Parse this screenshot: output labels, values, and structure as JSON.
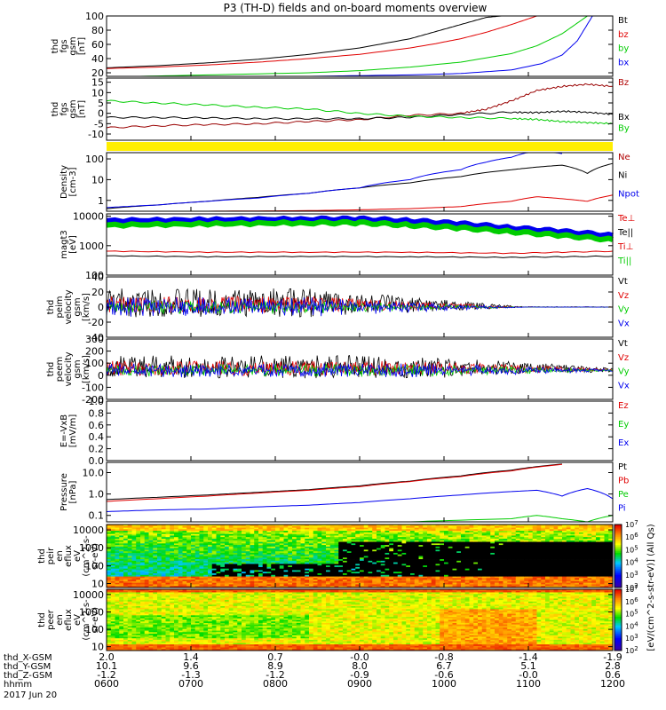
{
  "title": "P3 (TH-D) fields and on-board moments overview",
  "colors": {
    "black": "#000000",
    "red": "#e00000",
    "green": "#00dd00",
    "blue": "#0000ee",
    "yellow": "#ffee00"
  },
  "chart_data": {
    "type": "line",
    "x_axis": {
      "ticks": [
        "0600",
        "0700",
        "0800",
        "0900",
        "1000",
        "1100",
        "1200"
      ],
      "rows": [
        {
          "label": "thd_X-GSM",
          "values": [
            "2.0",
            "1.4",
            "0.7",
            "-0.0",
            "-0.8",
            "-1.4",
            "-1.9"
          ]
        },
        {
          "label": "thd_Y-GSM",
          "values": [
            "10.1",
            "9.6",
            "8.9",
            "8.0",
            "6.7",
            "5.1",
            "2.8"
          ]
        },
        {
          "label": "thd_Z-GSM",
          "values": [
            "-1.2",
            "-1.3",
            "-1.2",
            "-0.9",
            "-0.6",
            "-0.0",
            "0.6"
          ]
        },
        {
          "label": "hhmm",
          "values": []
        }
      ],
      "date": "2017 Jun 20"
    },
    "panels": [
      {
        "id": "btot",
        "type": "line",
        "ylabel": [
          "thd",
          "fgs",
          "gsm",
          "[nT]"
        ],
        "yticks": [
          "20",
          "40",
          "60",
          "80",
          "100"
        ],
        "ylim": [
          15,
          100
        ],
        "legend": [
          "Bt",
          "bz",
          "by",
          "bx"
        ],
        "legend_colors": [
          "black",
          "red",
          "green",
          "blue"
        ],
        "series": [
          {
            "name": "Bt",
            "color": "black",
            "x": [
              0,
              0.1,
              0.2,
              0.3,
              0.4,
              0.5,
              0.6,
              0.65,
              0.7,
              0.75,
              0.78
            ],
            "y": [
              27,
              30,
              34,
              39,
              46,
              55,
              68,
              78,
              88,
              98,
              100
            ]
          },
          {
            "name": "bz",
            "color": "red",
            "x": [
              0,
              0.1,
              0.2,
              0.3,
              0.4,
              0.5,
              0.6,
              0.65,
              0.7,
              0.75,
              0.8,
              0.85
            ],
            "y": [
              26,
              28,
              31,
              35,
              40,
              46,
              55,
              61,
              68,
              77,
              88,
              100
            ]
          },
          {
            "name": "by",
            "color": "green",
            "x": [
              0,
              0.2,
              0.4,
              0.5,
              0.6,
              0.7,
              0.8,
              0.85,
              0.9,
              0.95
            ],
            "y": [
              14,
              17,
              20,
              23,
              28,
              35,
              47,
              58,
              75,
              100
            ]
          },
          {
            "name": "bx",
            "color": "blue",
            "x": [
              0,
              0.2,
              0.4,
              0.6,
              0.7,
              0.8,
              0.86,
              0.9,
              0.93,
              0.96
            ],
            "y": [
              13,
              14,
              15,
              17,
              19,
              24,
              33,
              45,
              65,
              100
            ]
          }
        ]
      },
      {
        "id": "bcomp",
        "type": "line",
        "ylabel": [
          "thd",
          "fgs",
          "gsm",
          "[nT]"
        ],
        "yticks": [
          "-10",
          "-5",
          "0",
          "5",
          "10",
          "15"
        ],
        "ylim": [
          -13,
          17
        ],
        "legend": [
          "Bz",
          "",
          "",
          "Bx",
          "By"
        ],
        "legend_colors": [
          "brown",
          "",
          "",
          "black",
          "green"
        ],
        "series": [
          {
            "name": "Bz",
            "color": "#990000",
            "x": [
              0,
              0.1,
              0.2,
              0.3,
              0.4,
              0.5,
              0.6,
              0.7,
              0.75,
              0.8,
              0.85,
              0.9,
              0.95,
              1.0
            ],
            "y": [
              -7,
              -6,
              -5.5,
              -5,
              -4,
              -3,
              -1,
              0,
              2,
              6,
              11,
              13,
              14,
              13
            ]
          },
          {
            "name": "Bx",
            "color": "black",
            "x": [
              0,
              0.1,
              0.2,
              0.3,
              0.4,
              0.5,
              0.6,
              0.7,
              0.8,
              0.85,
              0.9,
              0.95,
              1.0
            ],
            "y": [
              -2,
              -2,
              -2.3,
              -2.5,
              -2.7,
              -2.5,
              -2,
              -0.5,
              0.5,
              0.3,
              1,
              0.5,
              -0.5
            ]
          },
          {
            "name": "By",
            "color": "green",
            "x": [
              0,
              0.1,
              0.2,
              0.3,
              0.4,
              0.5,
              0.6,
              0.7,
              0.8,
              0.85,
              0.9,
              0.95,
              1.0
            ],
            "y": [
              6,
              5,
              4,
              3,
              2,
              0,
              -1.5,
              -2,
              -2.5,
              -3,
              -4,
              -4.5,
              -5
            ]
          }
        ]
      },
      {
        "id": "density",
        "type": "line",
        "ylabel": [
          "Density",
          "[cm-3]"
        ],
        "yticks": [
          "1",
          "10",
          "100"
        ],
        "log": true,
        "ylim": [
          0.3,
          200
        ],
        "legend": [
          "Ne",
          "Ni",
          "Npot"
        ],
        "legend_colors": [
          "brown",
          "black",
          "blue"
        ],
        "series": [
          {
            "name": "Ne",
            "color": "red",
            "x": [
              0,
              0.2,
              0.4,
              0.5,
              0.6,
              0.7,
              0.8,
              0.85,
              0.9,
              0.95,
              1.0
            ],
            "y": [
              0.3,
              0.3,
              0.32,
              0.35,
              0.4,
              0.5,
              0.9,
              1.5,
              1.2,
              0.9,
              1.8
            ]
          },
          {
            "name": "Ni",
            "color": "black",
            "x": [
              0,
              0.1,
              0.2,
              0.3,
              0.4,
              0.5,
              0.6,
              0.7,
              0.8,
              0.85,
              0.9,
              0.95,
              1.0
            ],
            "y": [
              0.4,
              0.6,
              0.9,
              1.4,
              2.2,
              4,
              7,
              14,
              30,
              40,
              50,
              20,
              60
            ]
          },
          {
            "name": "Npot",
            "color": "blue",
            "x": [
              0,
              0.1,
              0.2,
              0.3,
              0.4,
              0.5,
              0.6,
              0.7,
              0.75,
              0.8,
              0.85,
              0.9
            ],
            "y": [
              0.45,
              0.6,
              0.9,
              1.3,
              2.2,
              4,
              10,
              30,
              70,
              120,
              250,
              180
            ]
          }
        ]
      },
      {
        "id": "temp",
        "type": "line",
        "ylabel": [
          "magt3",
          "[eV]"
        ],
        "yticks": [
          "100",
          "1000",
          "10000"
        ],
        "log": true,
        "ylim": [
          100,
          12000
        ],
        "legend": [
          "Te⊥",
          "Te||",
          "Ti⊥",
          "Ti||"
        ],
        "legend_colors": [
          "red",
          "black",
          "red",
          "green"
        ],
        "series": [
          {
            "name": "Ti⊥",
            "color": "blue",
            "x": [
              0,
              0.2,
              0.4,
              0.5,
              0.6,
              0.7,
              0.8,
              0.9,
              1.0
            ],
            "y": [
              7000,
              7500,
              8000,
              8000,
              7000,
              5500,
              4000,
              3000,
              2200
            ]
          },
          {
            "name": "Ti||",
            "color": "green",
            "x": [
              0,
              0.2,
              0.4,
              0.5,
              0.6,
              0.7,
              0.8,
              0.9,
              1.0
            ],
            "y": [
              5000,
              5500,
              6000,
              6000,
              5000,
              4000,
              3000,
              2200,
              1600
            ]
          },
          {
            "name": "Te⊥",
            "color": "red",
            "x": [
              0,
              0.2,
              0.4,
              0.6,
              0.8,
              0.9,
              1.0
            ],
            "y": [
              650,
              600,
              600,
              600,
              550,
              600,
              650
            ]
          },
          {
            "name": "Te||",
            "color": "black",
            "x": [
              0,
              0.2,
              0.4,
              0.6,
              0.8,
              0.9,
              1.0
            ],
            "y": [
              450,
              420,
              430,
              420,
              400,
              420,
              440
            ]
          }
        ]
      },
      {
        "id": "vi",
        "type": "noise",
        "ylabel": [
          "thd",
          "peim",
          "velocity",
          "gsm",
          "[km/s]"
        ],
        "yticks": [
          "-40",
          "-20",
          "0",
          "20",
          "40"
        ],
        "ylim": [
          -40,
          40
        ],
        "legend": [
          "Vt",
          "Vz",
          "Vy",
          "Vx"
        ],
        "legend_colors": [
          "black",
          "red",
          "green",
          "blue"
        ]
      },
      {
        "id": "ve",
        "type": "noise",
        "ylabel": [
          "thd",
          "peem",
          "velocity",
          "gsm",
          "[km/s]"
        ],
        "yticks": [
          "-200",
          "-100",
          "0",
          "100",
          "200",
          "300"
        ],
        "ylim": [
          -200,
          300
        ],
        "legend": [
          "Vt",
          "Vz",
          "Vy",
          "Vx"
        ],
        "legend_colors": [
          "black",
          "red",
          "green",
          "blue"
        ]
      },
      {
        "id": "efield",
        "type": "empty",
        "ylabel": [
          "E=-VxB",
          "[mV/m]"
        ],
        "yticks": [
          "0.0",
          "0.2",
          "0.4",
          "0.6",
          "0.8",
          "1.0"
        ],
        "ylim": [
          0,
          1
        ],
        "legend": [
          "Ez",
          "Ey",
          "Ex"
        ],
        "legend_colors": [
          "red",
          "green",
          "blue"
        ]
      },
      {
        "id": "pressure",
        "type": "line",
        "ylabel": [
          "Pressure",
          "[nPa]"
        ],
        "yticks": [
          "0.1",
          "1.0",
          "10.0"
        ],
        "log": true,
        "ylim": [
          0.05,
          30
        ],
        "legend": [
          "Pt",
          "Pb",
          "Pe",
          "Pi"
        ],
        "legend_colors": [
          "black",
          "red",
          "green",
          "blue"
        ],
        "series": [
          {
            "name": "Pt",
            "color": "black",
            "x": [
              0,
              0.1,
              0.2,
              0.3,
              0.4,
              0.5,
              0.6,
              0.7,
              0.8,
              0.9
            ],
            "y": [
              0.55,
              0.7,
              0.9,
              1.2,
              1.6,
              2.4,
              4,
              7,
              13,
              25
            ]
          },
          {
            "name": "Pb",
            "color": "red",
            "x": [
              0,
              0.1,
              0.2,
              0.3,
              0.4,
              0.5,
              0.6,
              0.7,
              0.8,
              0.9
            ],
            "y": [
              0.45,
              0.6,
              0.8,
              1.1,
              1.5,
              2.2,
              3.8,
              6.5,
              12,
              24
            ]
          },
          {
            "name": "Pi",
            "color": "blue",
            "x": [
              0,
              0.1,
              0.2,
              0.3,
              0.4,
              0.5,
              0.6,
              0.7,
              0.8,
              0.85,
              0.9,
              0.95,
              1.0
            ],
            "y": [
              0.15,
              0.18,
              0.2,
              0.25,
              0.3,
              0.4,
              0.6,
              0.9,
              1.3,
              1.5,
              0.8,
              1.8,
              0.6
            ]
          },
          {
            "name": "Pe",
            "color": "green",
            "x": [
              0,
              0.2,
              0.4,
              0.6,
              0.8,
              0.85,
              0.9,
              0.95,
              1.0
            ],
            "y": [
              0.045,
              0.045,
              0.045,
              0.05,
              0.07,
              0.1,
              0.07,
              0.05,
              0.1
            ]
          }
        ]
      },
      {
        "id": "peir",
        "type": "heatmap",
        "ylabel": [
          "thd",
          "peir",
          "en",
          "eflux",
          "eV",
          "(cm^2-s-",
          "sr-eV)"
        ],
        "yticks": [
          "10",
          "100",
          "1000",
          "10000"
        ],
        "log": true
      },
      {
        "id": "peer",
        "type": "heatmap",
        "ylabel": [
          "thd",
          "peer",
          "en",
          "eflux",
          "eV",
          "(cm^2-s-",
          "sr-eV)"
        ],
        "yticks": [
          "10",
          "100",
          "1000",
          "10000"
        ],
        "log": true
      }
    ],
    "colorbar": {
      "labels": [
        "10^2",
        "10^3",
        "10^4",
        "10^5",
        "10^6",
        "10^7"
      ],
      "unit": "[eV/(cm^2-s-str-eV)] (All Qs)"
    }
  }
}
